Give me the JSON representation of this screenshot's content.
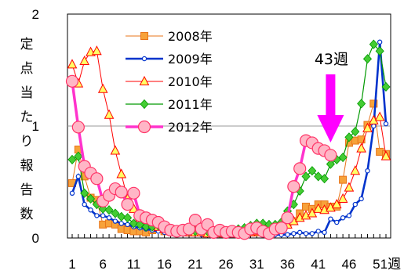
{
  "chart_data": {
    "type": "line",
    "ylabel": "定点当たり報告数",
    "xlabel_unit": "週",
    "ylim": [
      0,
      2
    ],
    "xlim": [
      1,
      52
    ],
    "y_ticks": [
      "0",
      "1",
      "2"
    ],
    "x_tick_labels": [
      {
        "week": 1,
        "label": "1"
      },
      {
        "week": 6,
        "label": "6"
      },
      {
        "week": 11,
        "label": "11"
      },
      {
        "week": 16,
        "label": "16"
      },
      {
        "week": 21,
        "label": "21"
      },
      {
        "week": 26,
        "label": "26"
      },
      {
        "week": 31,
        "label": "31"
      },
      {
        "week": 36,
        "label": "36"
      },
      {
        "week": 41,
        "label": "41"
      },
      {
        "week": 46,
        "label": "46"
      },
      {
        "week": 51,
        "label": "51週"
      }
    ],
    "grid": "horizontal at 1",
    "legend_position": "top-center",
    "annotation": {
      "text": "43週",
      "week": 43
    },
    "series": [
      {
        "name": "2008年",
        "color": "#E8741A",
        "marker": "square",
        "weeks": [
          1,
          2,
          3,
          4,
          5,
          6,
          7,
          8,
          9,
          10,
          11,
          12,
          13,
          14,
          15,
          16,
          17,
          18,
          19,
          20,
          21,
          22,
          23,
          24,
          25,
          26,
          27,
          28,
          29,
          30,
          31,
          32,
          33,
          34,
          35,
          36,
          37,
          38,
          39,
          40,
          41,
          42,
          43,
          44,
          45,
          46,
          47,
          48,
          49,
          50,
          51,
          52
        ],
        "values": [
          0.49,
          0.79,
          0.55,
          0.36,
          0.34,
          0.12,
          0.13,
          0.12,
          0.08,
          0.07,
          0.06,
          0.06,
          0.05,
          0.07,
          0.08,
          0.06,
          0.06,
          0.06,
          0.05,
          0.06,
          0.07,
          0.06,
          0.05,
          0.05,
          0.05,
          0.04,
          0.04,
          0.05,
          0.05,
          0.05,
          0.05,
          0.06,
          0.06,
          0.08,
          0.1,
          0.12,
          0.15,
          0.22,
          0.28,
          0.26,
          0.3,
          0.3,
          0.28,
          0.28,
          0.52,
          0.85,
          0.87,
          0.88,
          1.01,
          1.2,
          0.77,
          0.75
        ]
      },
      {
        "name": "2009年",
        "color": "#0033CC",
        "marker": "circle",
        "weeks": [
          1,
          2,
          3,
          4,
          5,
          6,
          7,
          8,
          9,
          10,
          11,
          12,
          13,
          14,
          15,
          16,
          17,
          18,
          19,
          20,
          21,
          22,
          23,
          24,
          25,
          26,
          27,
          28,
          29,
          30,
          31,
          32,
          33,
          34,
          35,
          36,
          37,
          38,
          39,
          40,
          41,
          42,
          43,
          44,
          45,
          46,
          47,
          48,
          49,
          50,
          51,
          52
        ],
        "values": [
          0.4,
          0.55,
          0.3,
          0.25,
          0.2,
          0.2,
          0.18,
          0.15,
          0.13,
          0.12,
          0.1,
          0.09,
          0.08,
          0.07,
          0.06,
          0.05,
          0.05,
          0.05,
          0.04,
          0.04,
          0.04,
          0.03,
          0.03,
          0.03,
          0.03,
          0.03,
          0.03,
          0.04,
          0.05,
          0.06,
          0.05,
          0.05,
          0.04,
          0.03,
          0.03,
          0.03,
          0.04,
          0.05,
          0.04,
          0.04,
          0.06,
          0.05,
          0.17,
          0.14,
          0.18,
          0.2,
          0.3,
          0.35,
          0.6,
          1.0,
          1.75,
          1.02
        ]
      },
      {
        "name": "2010年",
        "color": "#FF0000",
        "marker": "triangle",
        "weeks": [
          1,
          2,
          3,
          4,
          5,
          6,
          7,
          8,
          9,
          10,
          11,
          12,
          13,
          14,
          15,
          16,
          17,
          18,
          19,
          20,
          21,
          22,
          23,
          24,
          25,
          26,
          27,
          28,
          29,
          30,
          31,
          32,
          33,
          34,
          35,
          36,
          37,
          38,
          39,
          40,
          41,
          42,
          43,
          44,
          45,
          46,
          47,
          48,
          49,
          50,
          51,
          52
        ],
        "values": [
          1.55,
          1.38,
          1.58,
          1.66,
          1.67,
          1.33,
          1.1,
          0.78,
          0.57,
          0.35,
          0.26,
          0.18,
          0.13,
          0.12,
          0.1,
          0.08,
          0.07,
          0.06,
          0.06,
          0.05,
          0.05,
          0.05,
          0.04,
          0.05,
          0.04,
          0.04,
          0.04,
          0.05,
          0.05,
          0.05,
          0.06,
          0.07,
          0.08,
          0.08,
          0.1,
          0.12,
          0.15,
          0.18,
          0.2,
          0.22,
          0.26,
          0.25,
          0.27,
          0.3,
          0.35,
          0.45,
          0.6,
          0.8,
          0.98,
          1.05,
          1.08,
          0.73
        ]
      },
      {
        "name": "2011年",
        "color": "#009900",
        "marker": "diamond",
        "weeks": [
          1,
          2,
          3,
          4,
          5,
          6,
          7,
          8,
          9,
          10,
          11,
          12,
          13,
          14,
          15,
          16,
          17,
          18,
          19,
          20,
          21,
          22,
          23,
          24,
          25,
          26,
          27,
          28,
          29,
          30,
          31,
          32,
          33,
          34,
          35,
          36,
          37,
          38,
          39,
          40,
          41,
          42,
          43,
          44,
          45,
          46,
          47,
          48,
          49,
          50,
          51,
          52
        ],
        "values": [
          0.7,
          0.73,
          0.4,
          0.35,
          0.3,
          0.26,
          0.25,
          0.22,
          0.19,
          0.18,
          0.13,
          0.12,
          0.1,
          0.1,
          0.11,
          0.1,
          0.08,
          0.07,
          0.07,
          0.06,
          0.06,
          0.07,
          0.06,
          0.06,
          0.05,
          0.06,
          0.07,
          0.08,
          0.09,
          0.11,
          0.13,
          0.13,
          0.12,
          0.12,
          0.14,
          0.24,
          0.3,
          0.42,
          0.55,
          0.6,
          0.55,
          0.53,
          0.66,
          0.7,
          0.72,
          0.9,
          0.95,
          1.2,
          1.6,
          1.73,
          1.67,
          1.35
        ]
      },
      {
        "name": "2012年",
        "color": "#FF33CC",
        "marker": "big-circle",
        "weeks": [
          1,
          2,
          3,
          4,
          5,
          6,
          7,
          8,
          9,
          10,
          11,
          12,
          13,
          14,
          15,
          16,
          17,
          18,
          19,
          20,
          21,
          22,
          23,
          24,
          25,
          26,
          27,
          28,
          29,
          30,
          31,
          32,
          33,
          34,
          35,
          36,
          37,
          38,
          39,
          40,
          41,
          42,
          43
        ],
        "values": [
          1.4,
          0.99,
          0.64,
          0.58,
          0.53,
          0.33,
          0.38,
          0.44,
          0.41,
          0.3,
          0.4,
          0.2,
          0.18,
          0.16,
          0.14,
          0.1,
          0.07,
          0.06,
          0.07,
          0.08,
          0.16,
          0.08,
          0.12,
          0.05,
          0.07,
          0.05,
          0.06,
          0.05,
          0.04,
          0.08,
          0.09,
          0.06,
          0.04,
          0.08,
          0.09,
          0.18,
          0.46,
          0.62,
          0.87,
          0.85,
          0.8,
          0.78,
          0.74
        ]
      }
    ]
  }
}
